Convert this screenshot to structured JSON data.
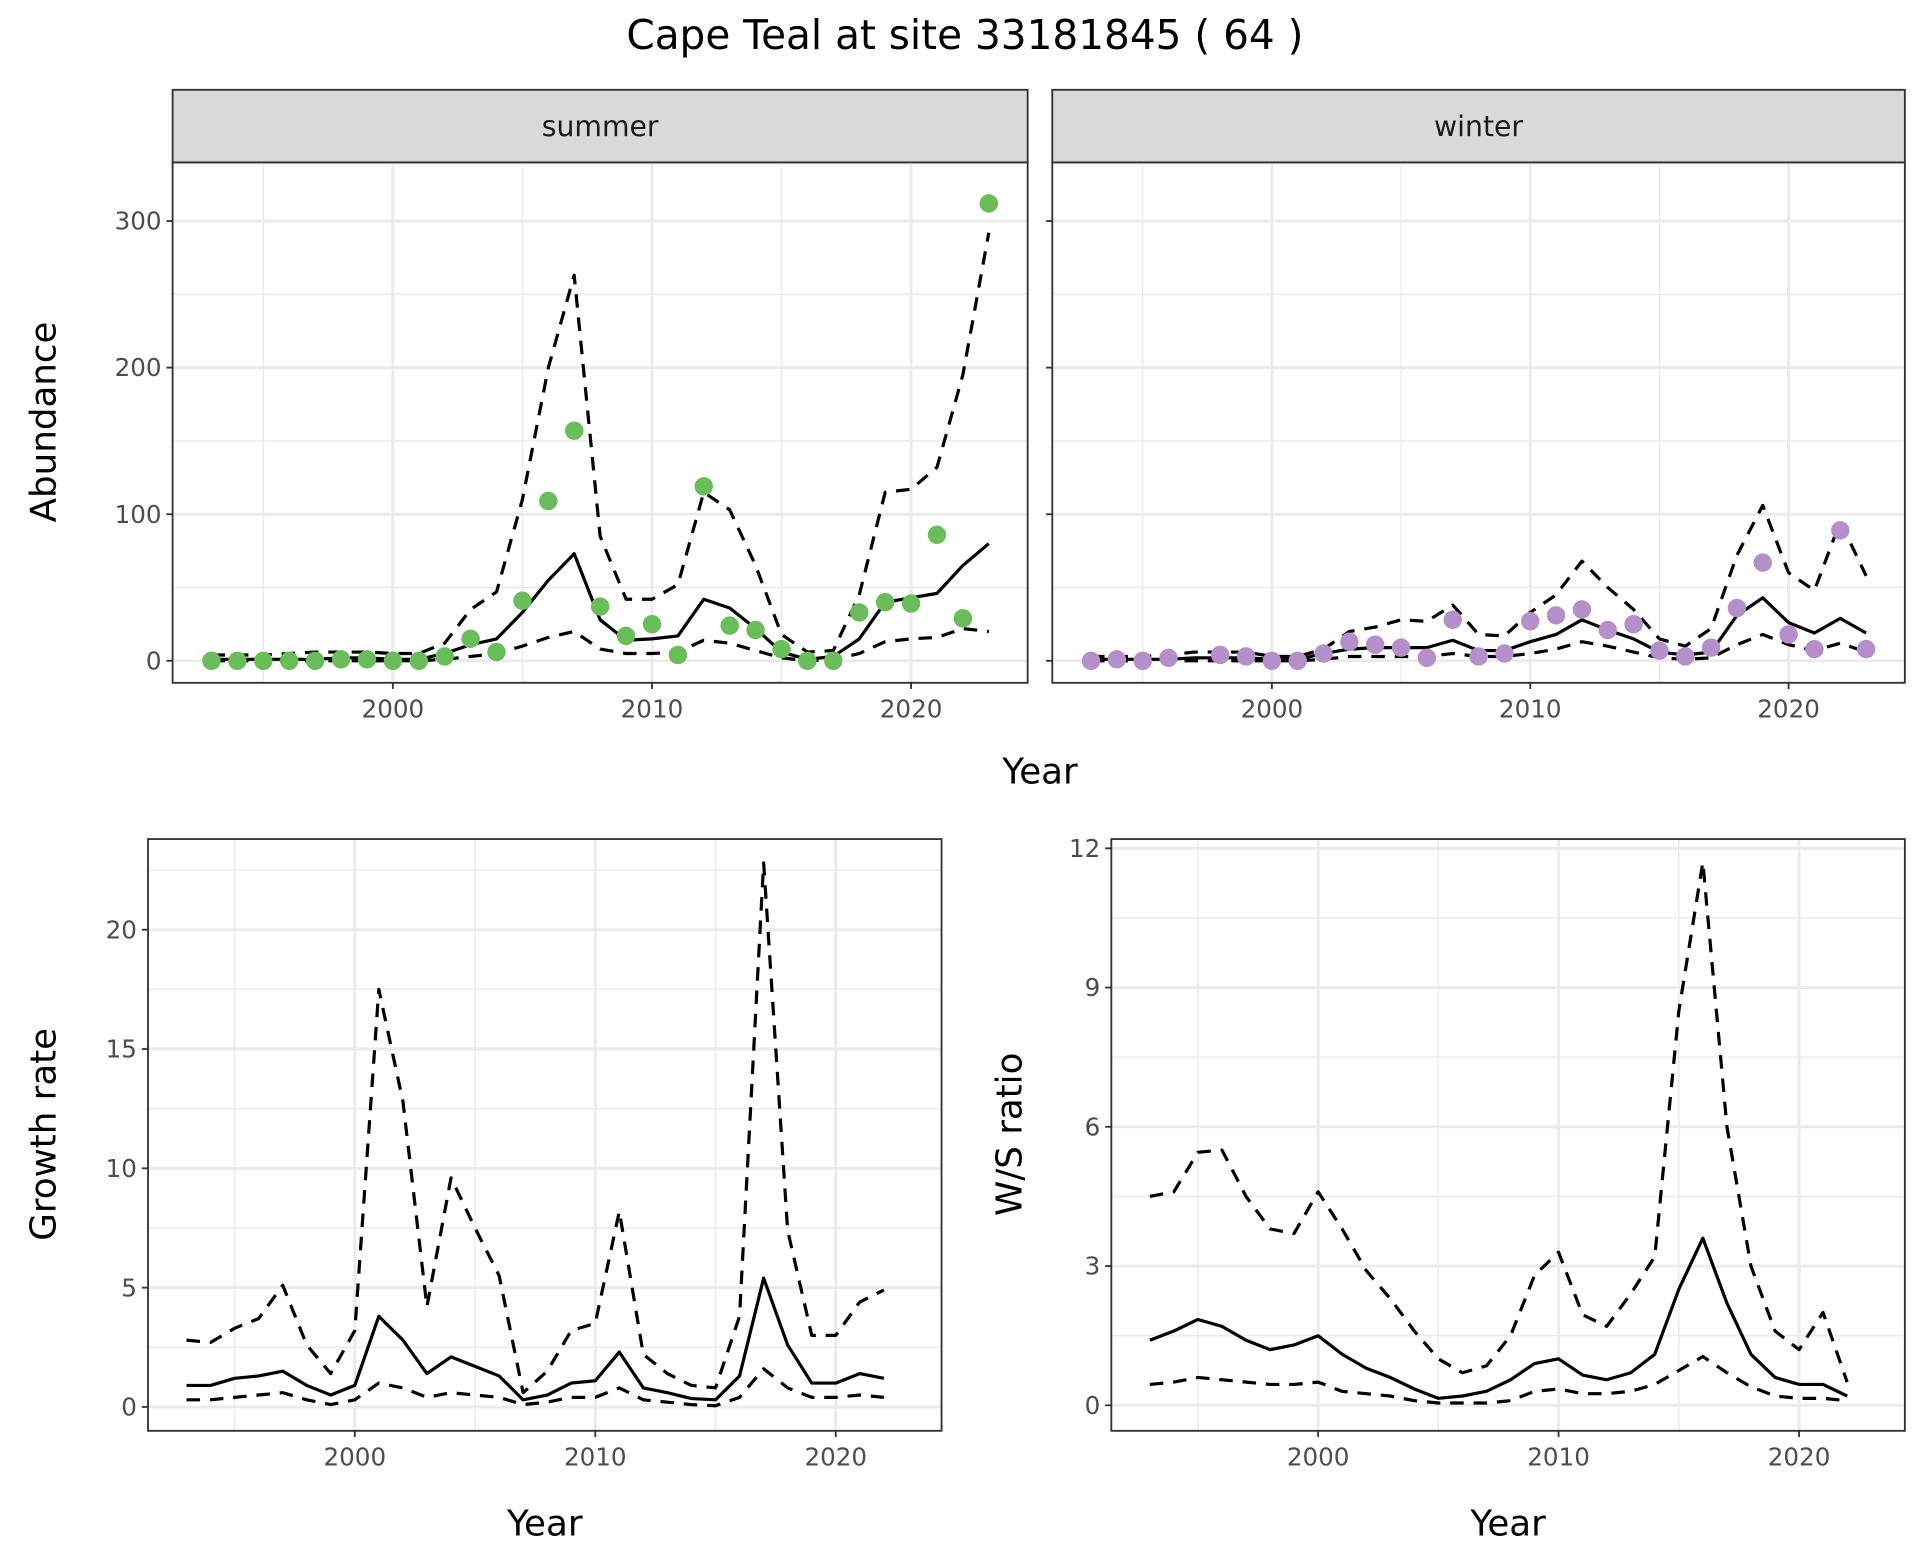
{
  "title": "Cape Teal at site 33181845 ( 64 )",
  "colors": {
    "summer": "#6abd5a",
    "winter": "#b58fc9",
    "line": "#000000",
    "grid": "#ebebeb",
    "strip": "#d9d9d9"
  },
  "top_xlabel": "Year",
  "chart_data": [
    {
      "id": "summer",
      "type": "line+scatter",
      "strip": "summer",
      "ylabel": "Abundance",
      "xlabel": "",
      "ylim": [
        -15,
        340
      ],
      "xlim": [
        1991.5,
        2024.5
      ],
      "yticks": [
        0,
        100,
        200,
        300
      ],
      "xticks": [
        2000,
        2010,
        2020
      ],
      "point_color": "summer",
      "x": [
        1993,
        1994,
        1995,
        1996,
        1997,
        1998,
        1999,
        2000,
        2001,
        2002,
        2003,
        2004,
        2005,
        2006,
        2007,
        2008,
        2009,
        2010,
        2011,
        2012,
        2013,
        2014,
        2015,
        2016,
        2017,
        2018,
        2019,
        2020,
        2021,
        2022,
        2023
      ],
      "points": [
        0,
        0,
        0,
        0,
        0,
        1,
        1,
        0,
        0,
        3,
        15,
        6,
        41,
        109,
        157,
        37,
        17,
        25,
        4,
        119,
        24,
        21,
        8,
        0,
        0,
        33,
        40,
        39,
        86,
        29,
        312
      ],
      "mean": [
        1,
        1,
        1,
        1,
        1,
        2,
        2,
        1,
        1,
        5,
        11,
        15,
        33,
        55,
        73,
        28,
        14,
        15,
        17,
        42,
        36,
        22,
        6,
        1,
        3,
        15,
        40,
        43,
        46,
        65,
        80
      ],
      "upper": [
        4,
        4,
        4,
        5,
        6,
        6,
        6,
        5,
        5,
        12,
        35,
        47,
        110,
        200,
        263,
        85,
        42,
        42,
        52,
        115,
        103,
        65,
        18,
        6,
        7,
        45,
        115,
        117,
        132,
        195,
        292
      ],
      "lower": [
        0,
        0,
        0,
        0,
        0,
        0,
        0,
        0,
        0,
        1,
        3,
        5,
        10,
        16,
        20,
        8,
        5,
        5,
        6,
        14,
        12,
        7,
        2,
        0,
        1,
        5,
        13,
        15,
        16,
        22,
        20
      ]
    },
    {
      "id": "winter",
      "type": "line+scatter",
      "strip": "winter",
      "ylabel": "",
      "xlabel": "",
      "ylim": [
        -15,
        340
      ],
      "xlim": [
        1991.5,
        2024.5
      ],
      "yticks": [
        0,
        100,
        200,
        300
      ],
      "xticks": [
        2000,
        2010,
        2020
      ],
      "point_color": "winter",
      "x": [
        1993,
        1994,
        1995,
        1996,
        1997,
        1998,
        1999,
        2000,
        2001,
        2002,
        2003,
        2004,
        2005,
        2006,
        2007,
        2008,
        2009,
        2010,
        2011,
        2012,
        2013,
        2014,
        2015,
        2016,
        2017,
        2018,
        2019,
        2020,
        2021,
        2022,
        2023
      ],
      "points": [
        0,
        1,
        0,
        2,
        null,
        4,
        3,
        0,
        0,
        5,
        13,
        11,
        9,
        2,
        28,
        3,
        5,
        27,
        31,
        35,
        21,
        25,
        7,
        3,
        9,
        36,
        67,
        18,
        8,
        89,
        8
      ],
      "mean": [
        1,
        1,
        1,
        1,
        2,
        2,
        2,
        1,
        1,
        5,
        8,
        9,
        9,
        9,
        14,
        7,
        7,
        13,
        18,
        28,
        21,
        15,
        6,
        4,
        6,
        31,
        43,
        26,
        19,
        29,
        19
      ],
      "upper": [
        3,
        3,
        3,
        4,
        6,
        6,
        6,
        3,
        3,
        8,
        20,
        23,
        28,
        27,
        38,
        18,
        17,
        33,
        45,
        68,
        50,
        35,
        15,
        10,
        22,
        72,
        106,
        60,
        48,
        95,
        58
      ],
      "lower": [
        0,
        0,
        0,
        0,
        0,
        0,
        0,
        0,
        0,
        1,
        3,
        3,
        3,
        3,
        5,
        3,
        3,
        5,
        8,
        13,
        10,
        6,
        2,
        1,
        2,
        11,
        18,
        11,
        7,
        12,
        6
      ]
    },
    {
      "id": "growth",
      "type": "line",
      "ylabel": "Growth rate",
      "xlabel": "Year",
      "ylim": [
        -1,
        23.8
      ],
      "xlim": [
        1991.4,
        2024.4
      ],
      "yticks": [
        0,
        5,
        10,
        15,
        20
      ],
      "xticks": [
        2000,
        2010,
        2020
      ],
      "x": [
        1993,
        1994,
        1995,
        1996,
        1997,
        1998,
        1999,
        2000,
        2001,
        2002,
        2003,
        2004,
        2005,
        2006,
        2007,
        2008,
        2009,
        2010,
        2011,
        2012,
        2013,
        2014,
        2015,
        2016,
        2017,
        2018,
        2019,
        2020,
        2021,
        2022
      ],
      "mean": [
        0.9,
        0.9,
        1.2,
        1.3,
        1.5,
        0.9,
        0.5,
        0.9,
        3.8,
        2.8,
        1.4,
        2.1,
        1.7,
        1.3,
        0.3,
        0.5,
        1.0,
        1.1,
        2.3,
        0.8,
        0.6,
        0.35,
        0.3,
        1.3,
        5.4,
        2.6,
        1.0,
        1.0,
        1.4,
        1.2
      ],
      "upper": [
        2.8,
        2.7,
        3.3,
        3.7,
        5.1,
        2.6,
        1.4,
        3.2,
        17.5,
        12.8,
        4.2,
        9.6,
        7.5,
        5.5,
        0.6,
        1.5,
        3.2,
        3.5,
        8.2,
        2.2,
        1.4,
        0.9,
        0.8,
        3.8,
        22.8,
        7.4,
        3.0,
        3.0,
        4.4,
        4.9
      ],
      "lower": [
        0.3,
        0.3,
        0.4,
        0.5,
        0.6,
        0.3,
        0.1,
        0.3,
        1.0,
        0.8,
        0.4,
        0.6,
        0.5,
        0.4,
        0.1,
        0.2,
        0.4,
        0.4,
        0.8,
        0.3,
        0.2,
        0.1,
        0.05,
        0.4,
        1.6,
        0.8,
        0.4,
        0.4,
        0.5,
        0.4
      ]
    },
    {
      "id": "ratio",
      "type": "line",
      "ylabel": "W/S ratio",
      "xlabel": "Year",
      "ylim": [
        -0.55,
        12.2
      ],
      "xlim": [
        1991.4,
        2024.4
      ],
      "yticks": [
        0,
        3,
        6,
        9,
        12
      ],
      "xticks": [
        2000,
        2010,
        2020
      ],
      "x": [
        1993,
        1994,
        1995,
        1996,
        1997,
        1998,
        1999,
        2000,
        2001,
        2002,
        2003,
        2004,
        2005,
        2006,
        2007,
        2008,
        2009,
        2010,
        2011,
        2012,
        2013,
        2014,
        2015,
        2016,
        2017,
        2018,
        2019,
        2020,
        2021,
        2022
      ],
      "mean": [
        1.4,
        1.6,
        1.85,
        1.7,
        1.4,
        1.2,
        1.3,
        1.5,
        1.1,
        0.8,
        0.6,
        0.35,
        0.15,
        0.2,
        0.3,
        0.55,
        0.9,
        1.0,
        0.65,
        0.55,
        0.7,
        1.1,
        2.5,
        3.6,
        2.2,
        1.1,
        0.6,
        0.45,
        0.45,
        0.2
      ],
      "upper": [
        4.5,
        4.6,
        5.45,
        5.5,
        4.5,
        3.8,
        3.7,
        4.6,
        3.8,
        2.9,
        2.3,
        1.6,
        1.0,
        0.7,
        0.85,
        1.5,
        2.8,
        3.3,
        1.95,
        1.7,
        2.4,
        3.2,
        8.5,
        11.7,
        6.0,
        3.0,
        1.6,
        1.2,
        2.0,
        0.5
      ],
      "lower": [
        0.45,
        0.5,
        0.6,
        0.55,
        0.5,
        0.45,
        0.45,
        0.5,
        0.3,
        0.25,
        0.2,
        0.1,
        0.05,
        0.05,
        0.05,
        0.1,
        0.3,
        0.35,
        0.25,
        0.25,
        0.3,
        0.45,
        0.75,
        1.05,
        0.7,
        0.4,
        0.2,
        0.15,
        0.15,
        0.1
      ]
    }
  ]
}
